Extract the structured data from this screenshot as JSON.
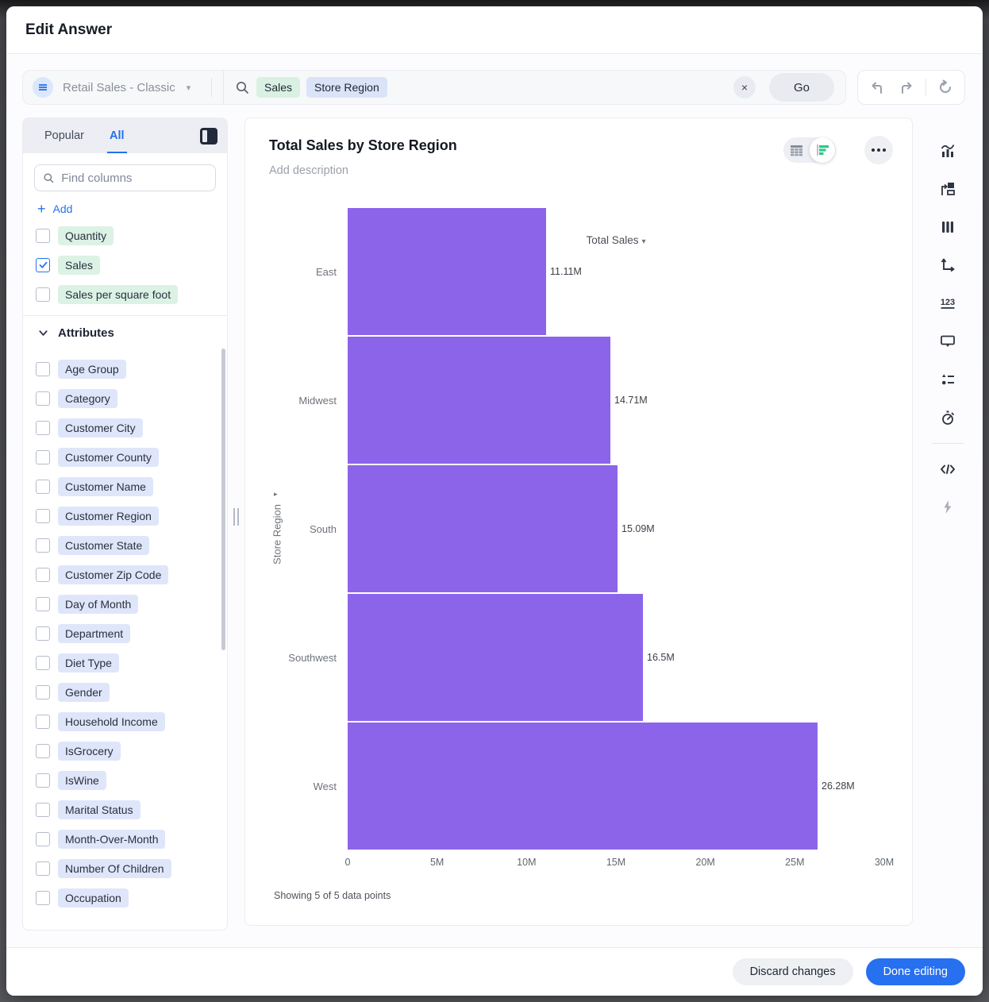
{
  "modal": {
    "title": "Edit Answer"
  },
  "datasource": {
    "name": "Retail Sales - Classic"
  },
  "search": {
    "tokens": [
      {
        "text": "Sales",
        "type": "measure"
      },
      {
        "text": "Store Region",
        "type": "attribute"
      }
    ],
    "clear_label": "×",
    "go_label": "Go"
  },
  "panel": {
    "tabs": [
      {
        "label": "Popular",
        "active": false
      },
      {
        "label": "All",
        "active": true
      }
    ],
    "find_placeholder": "Find columns",
    "add_label": "Add",
    "measures": [
      {
        "label": "Quantity",
        "checked": false
      },
      {
        "label": "Sales",
        "checked": true
      },
      {
        "label": "Sales per square foot",
        "checked": false
      }
    ],
    "attributes_header": "Attributes",
    "attributes": [
      {
        "label": "Age Group",
        "checked": false
      },
      {
        "label": "Category",
        "checked": false
      },
      {
        "label": "Customer City",
        "checked": false
      },
      {
        "label": "Customer County",
        "checked": false
      },
      {
        "label": "Customer Name",
        "checked": false
      },
      {
        "label": "Customer Region",
        "checked": false
      },
      {
        "label": "Customer State",
        "checked": false
      },
      {
        "label": "Customer Zip Code",
        "checked": false
      },
      {
        "label": "Day of Month",
        "checked": false
      },
      {
        "label": "Department",
        "checked": false
      },
      {
        "label": "Diet Type",
        "checked": false
      },
      {
        "label": "Gender",
        "checked": false
      },
      {
        "label": "Household Income",
        "checked": false
      },
      {
        "label": "IsGrocery",
        "checked": false
      },
      {
        "label": "IsWine",
        "checked": false
      },
      {
        "label": "Marital Status",
        "checked": false
      },
      {
        "label": "Month-Over-Month",
        "checked": false
      },
      {
        "label": "Number Of Children",
        "checked": false
      },
      {
        "label": "Occupation",
        "checked": false
      }
    ]
  },
  "chart": {
    "title": "Total Sales by Store Region",
    "description_placeholder": "Add description",
    "footnote": "Showing 5 of 5 data points",
    "y_axis_caret": "▸",
    "x_axis_caret": "▾"
  },
  "chart_data": {
    "type": "bar",
    "orientation": "horizontal",
    "title": "Total Sales by Store Region",
    "categories": [
      "East",
      "Midwest",
      "South",
      "Southwest",
      "West"
    ],
    "values": [
      11.11,
      14.71,
      15.09,
      16.5,
      26.28
    ],
    "value_labels": [
      "11.11M",
      "14.71M",
      "15.09M",
      "16.5M",
      "26.28M"
    ],
    "value_unit": "M",
    "xlabel": "Total Sales",
    "ylabel": "Store Region",
    "xlim": [
      0,
      30
    ],
    "xticks": [
      "0",
      "5M",
      "10M",
      "15M",
      "20M",
      "25M",
      "30M"
    ],
    "grid": false,
    "legend": false,
    "bar_color": "#8c64ea"
  },
  "right_rail": {
    "icons": [
      {
        "name": "change-visualization-icon"
      },
      {
        "name": "chart-config-icon"
      },
      {
        "name": "columns-icon"
      },
      {
        "name": "axes-icon"
      },
      {
        "name": "number-format-icon"
      },
      {
        "name": "tooltip-icon"
      },
      {
        "name": "list-style-icon"
      },
      {
        "name": "timer-icon"
      }
    ],
    "icons_lower": [
      {
        "name": "code-icon"
      },
      {
        "name": "lightning-icon"
      }
    ]
  },
  "footer": {
    "discard_label": "Discard changes",
    "done_label": "Done editing"
  },
  "colors": {
    "accent_blue": "#2770ef",
    "bar_purple": "#8c64ea",
    "measure_token_bg": "#d9f1e3",
    "attribute_token_bg": "#dbe3f8",
    "toggle_chart_green": "#2bc98c"
  }
}
